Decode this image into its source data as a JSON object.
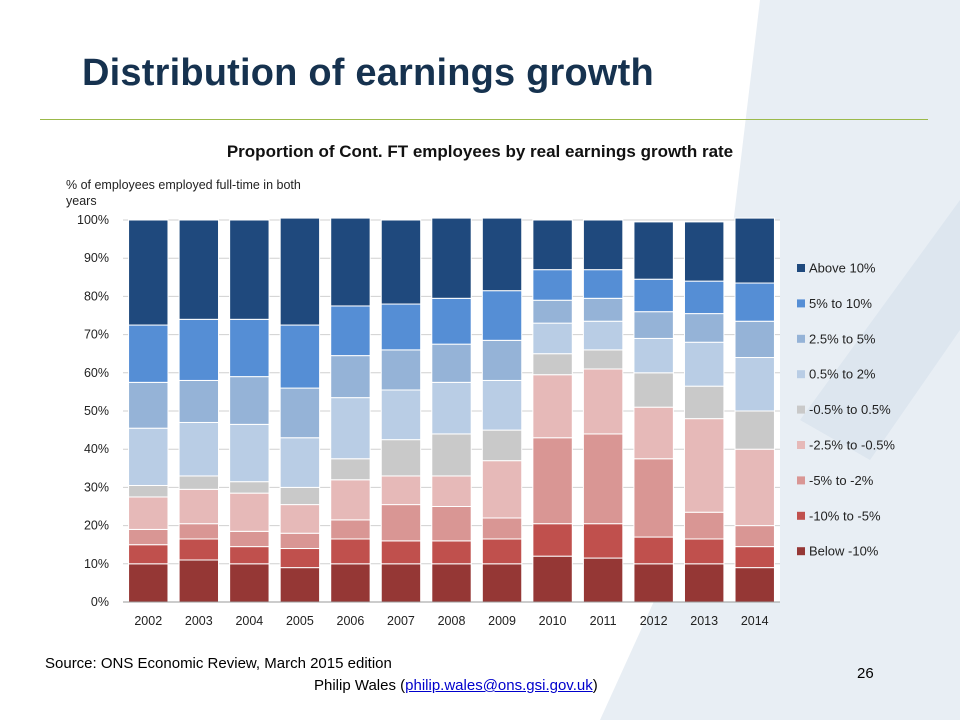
{
  "slide": {
    "title": "Distribution of earnings growth",
    "source": "Source: ONS Economic Review, March 2015 edition",
    "author_name": "Philip Wales",
    "author_open": "(",
    "author_email": "philip.wales@ons.gsi.gov.uk",
    "author_close": ")",
    "page_number": "26"
  },
  "chart_data": {
    "type": "bar",
    "stacked": true,
    "title": "Proportion of Cont. FT employees by real earnings growth rate",
    "ylabel": "% of employees employed full-time in both years",
    "xlabel": "",
    "ylim": [
      0,
      100
    ],
    "y_ticks": [
      "0%",
      "10%",
      "20%",
      "30%",
      "40%",
      "50%",
      "60%",
      "70%",
      "80%",
      "90%",
      "100%"
    ],
    "legend_position": "right",
    "categories": [
      "2002",
      "2003",
      "2004",
      "2005",
      "2006",
      "2007",
      "2008",
      "2009",
      "2010",
      "2011",
      "2012",
      "2013",
      "2014"
    ],
    "series": [
      {
        "name": "Below -10%",
        "color": "#953735",
        "values": [
          10,
          11,
          10,
          9,
          10,
          10,
          10,
          10,
          12,
          11.5,
          10,
          10,
          9
        ]
      },
      {
        "name": "-10% to -5%",
        "color": "#c0504d",
        "values": [
          5,
          5.5,
          4.5,
          5,
          6.5,
          6,
          6,
          6.5,
          8.5,
          9,
          7,
          6.5,
          5.5
        ]
      },
      {
        "name": "-5% to -2%",
        "color": "#d99694",
        "values": [
          4,
          4,
          4,
          4,
          5,
          9.5,
          9,
          5.5,
          22.5,
          23.5,
          20.5,
          7,
          5.5
        ]
      },
      {
        "name": "-2.5% to -0.5%",
        "color": "#e6b9b8",
        "values": [
          8.5,
          9,
          10,
          7.5,
          10.5,
          7.5,
          8,
          15,
          16.5,
          17,
          13.5,
          24.5,
          20
        ]
      },
      {
        "name": "-0.5% to 0.5%",
        "color": "#c9c9c9",
        "values": [
          3,
          3.5,
          3,
          4.5,
          5.5,
          9.5,
          11,
          8,
          5.5,
          5,
          9,
          8.5,
          10
        ]
      },
      {
        "name": "0.5% to 2%",
        "color": "#b9cde5",
        "values": [
          15,
          14,
          15,
          13,
          16,
          13,
          13.5,
          13,
          8,
          7.5,
          9,
          11.5,
          14
        ]
      },
      {
        "name": "2.5% to 5%",
        "color": "#95b3d7",
        "values": [
          12,
          11,
          12.5,
          13,
          11,
          10.5,
          10,
          10.5,
          6,
          6,
          7,
          7.5,
          9.5
        ]
      },
      {
        "name": "5% to 10%",
        "color": "#558ed5",
        "values": [
          15,
          16,
          15,
          16.5,
          13,
          12,
          12,
          13,
          8,
          7.5,
          8.5,
          8.5,
          10
        ]
      },
      {
        "name": "Above 10%",
        "color": "#1f497d",
        "values": [
          27.5,
          26,
          26,
          28,
          23,
          22,
          21,
          19,
          13,
          13,
          15,
          15.5,
          17
        ]
      }
    ]
  }
}
